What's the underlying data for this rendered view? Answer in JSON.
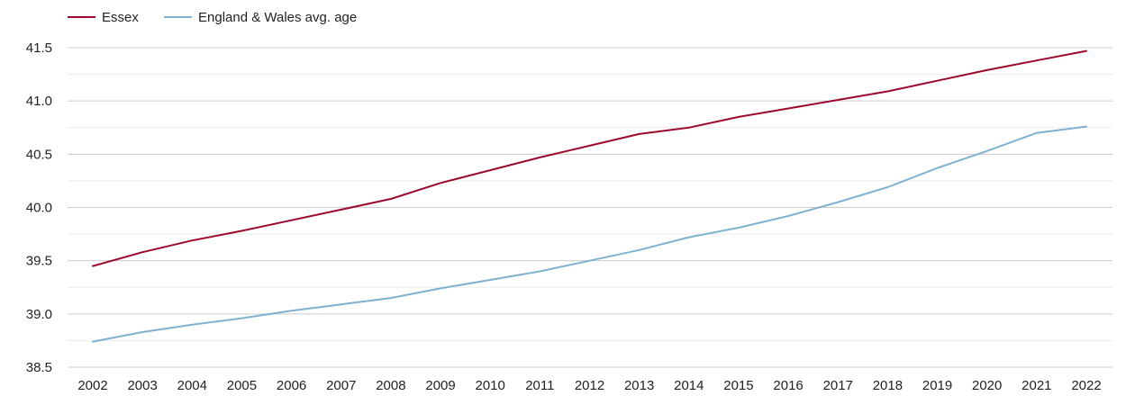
{
  "chart_data": {
    "type": "line",
    "title": "",
    "xlabel": "",
    "ylabel": "",
    "categories": [
      "2002",
      "2003",
      "2004",
      "2005",
      "2006",
      "2007",
      "2008",
      "2009",
      "2010",
      "2011",
      "2012",
      "2013",
      "2014",
      "2015",
      "2016",
      "2017",
      "2018",
      "2019",
      "2020",
      "2021",
      "2022"
    ],
    "ylim": [
      38.5,
      41.5
    ],
    "yticks": [
      "38.5",
      "39.0",
      "39.5",
      "40.0",
      "40.5",
      "41.0",
      "41.5"
    ],
    "grid": true,
    "legend_position": "top-left",
    "series": [
      {
        "name": "Essex",
        "color": "#9b0a2e",
        "values": [
          39.45,
          39.58,
          39.69,
          39.78,
          39.88,
          39.98,
          40.08,
          40.23,
          40.35,
          40.47,
          40.58,
          40.69,
          40.75,
          40.85,
          40.93,
          41.01,
          41.09,
          41.19,
          41.29,
          41.38,
          41.47
        ]
      },
      {
        "name": "England & Wales avg. age",
        "color": "#7fb1d1",
        "values": [
          38.74,
          38.83,
          38.9,
          38.96,
          39.03,
          39.09,
          39.15,
          39.24,
          39.32,
          39.4,
          39.5,
          39.6,
          39.72,
          39.81,
          39.92,
          40.05,
          40.19,
          40.37,
          40.53,
          40.7,
          40.76
        ]
      }
    ]
  }
}
